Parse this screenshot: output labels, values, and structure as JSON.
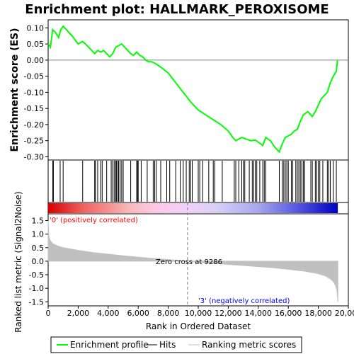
{
  "title": "Enrichment plot: HALLMARK_PEROXISOME",
  "colors": {
    "es_line": "#00ff00",
    "hits": "#000000",
    "metric_fill": "#c0c0c0",
    "pos_label": "#ff0000",
    "neg_label": "#0000ff",
    "zero_line": "#808080"
  },
  "chart_data": [
    {
      "type": "line",
      "name": "enrichment-profile",
      "ylabel": "Enrichment score (ES)",
      "xlim": [
        0,
        20000
      ],
      "ylim": [
        -0.31,
        0.125
      ],
      "yticks": [
        0.1,
        0.05,
        0.0,
        -0.05,
        -0.1,
        -0.15,
        -0.2,
        -0.25,
        -0.3
      ],
      "ytick_labels": [
        "0.10",
        "0.05",
        "0.00",
        "-0.05",
        "-0.10",
        "-0.15",
        "-0.20",
        "-0.25",
        "-0.30"
      ],
      "x": [
        0,
        150,
        300,
        500,
        700,
        850,
        1000,
        1300,
        1600,
        2000,
        2300,
        2600,
        2900,
        3100,
        3300,
        3500,
        3700,
        3900,
        4100,
        4300,
        4500,
        4700,
        4900,
        5100,
        5300,
        5500,
        5700,
        5900,
        6100,
        6300,
        6500,
        6700,
        6900,
        7200,
        7600,
        8000,
        8500,
        9000,
        9500,
        10000,
        10500,
        11000,
        11500,
        12000,
        12300,
        12500,
        12700,
        12900,
        13200,
        13500,
        13800,
        14100,
        14300,
        14500,
        14800,
        15100,
        15400,
        15600,
        15800,
        16000,
        16200,
        16400,
        16600,
        16800,
        17000,
        17300,
        17600,
        17800,
        18000,
        18200,
        18400,
        18600,
        18800,
        19000,
        19200,
        19280
      ],
      "y": [
        0.05,
        0.04,
        0.095,
        0.085,
        0.07,
        0.095,
        0.105,
        0.09,
        0.075,
        0.05,
        0.058,
        0.045,
        0.03,
        0.02,
        0.03,
        0.025,
        0.03,
        0.02,
        0.01,
        0.02,
        0.04,
        0.045,
        0.05,
        0.04,
        0.03,
        0.02,
        0.015,
        0.025,
        0.015,
        0.01,
        0.0,
        -0.005,
        -0.005,
        -0.012,
        -0.025,
        -0.04,
        -0.07,
        -0.1,
        -0.13,
        -0.155,
        -0.17,
        -0.185,
        -0.2,
        -0.22,
        -0.24,
        -0.25,
        -0.245,
        -0.24,
        -0.245,
        -0.25,
        -0.248,
        -0.258,
        -0.265,
        -0.24,
        -0.25,
        -0.27,
        -0.285,
        -0.26,
        -0.24,
        -0.235,
        -0.23,
        -0.22,
        -0.215,
        -0.19,
        -0.17,
        -0.16,
        -0.175,
        -0.16,
        -0.14,
        -0.12,
        -0.11,
        -0.1,
        -0.07,
        -0.05,
        -0.035,
        0.0
      ]
    },
    {
      "type": "scatter",
      "name": "hits",
      "x": [
        310,
        330,
        350,
        800,
        1000,
        2300,
        3100,
        3150,
        3300,
        3500,
        3600,
        3900,
        4200,
        4300,
        4400,
        4500,
        4550,
        4650,
        4700,
        4800,
        4900,
        5000,
        5500,
        5900,
        5950,
        6000,
        6200,
        6600,
        7000,
        7100,
        7200,
        7500,
        7900,
        8100,
        8500,
        8800,
        9000,
        9200,
        9400,
        9500,
        9600,
        10000,
        10100,
        10300,
        10700,
        11000,
        11100,
        11600,
        12400,
        12500,
        12700,
        12900,
        13000,
        13100,
        13400,
        13600,
        13700,
        13800,
        13900,
        14100,
        14300,
        14400,
        14500,
        15400,
        15600,
        15700,
        15800,
        15900,
        16000,
        16200,
        16300,
        16500,
        16600,
        16700,
        16800,
        16900,
        17000,
        17100,
        17500,
        17600,
        17800,
        17900,
        18000,
        18100,
        18300,
        18600,
        18700,
        18800,
        19000,
        19200
      ]
    },
    {
      "type": "area",
      "name": "ranked-list-metric",
      "ylabel": "Ranked list metric (Signal2Noise)",
      "xlabel": "Rank in Ordered Dataset",
      "xlim": [
        0,
        20000
      ],
      "ylim": [
        -1.65,
        1.75
      ],
      "xticks": [
        0,
        2000,
        4000,
        6000,
        8000,
        10000,
        12000,
        14000,
        16000,
        18000,
        20000
      ],
      "xtick_labels": [
        "0",
        "2,000",
        "4,000",
        "6,000",
        "8,000",
        "10,000",
        "12,000",
        "14,000",
        "16,000",
        "18,000",
        "20,000"
      ],
      "yticks": [
        1.5,
        1.0,
        0.5,
        0.0,
        -0.5,
        -1.0,
        -1.5
      ],
      "ytick_labels": [
        "1.5",
        "1.0",
        "0.5",
        "0.0",
        "-0.5",
        "-1.0",
        "-1.5"
      ],
      "x": [
        0,
        50,
        150,
        300,
        600,
        1000,
        2000,
        3000,
        4000,
        5000,
        6000,
        7000,
        8000,
        9286,
        10000,
        11000,
        12000,
        13000,
        14000,
        15000,
        16000,
        17000,
        17500,
        18000,
        18500,
        18800,
        19000,
        19150,
        19250,
        19300
      ],
      "y": [
        1.5,
        0.9,
        0.75,
        0.65,
        0.57,
        0.5,
        0.4,
        0.32,
        0.26,
        0.2,
        0.15,
        0.1,
        0.06,
        0.0,
        -0.04,
        -0.08,
        -0.12,
        -0.16,
        -0.2,
        -0.24,
        -0.3,
        -0.36,
        -0.41,
        -0.46,
        -0.55,
        -0.65,
        -0.75,
        -0.9,
        -1.1,
        -1.5
      ],
      "zero_cross": 9286
    }
  ],
  "labels": {
    "pos": "'0' (positively correlated)",
    "neg": "'3' (negatively correlated)",
    "zero_cross": "Zero cross at 9286"
  },
  "legend": {
    "items": [
      {
        "label": "Enrichment profile"
      },
      {
        "label": "Hits"
      },
      {
        "label": "Ranking metric scores"
      }
    ]
  }
}
